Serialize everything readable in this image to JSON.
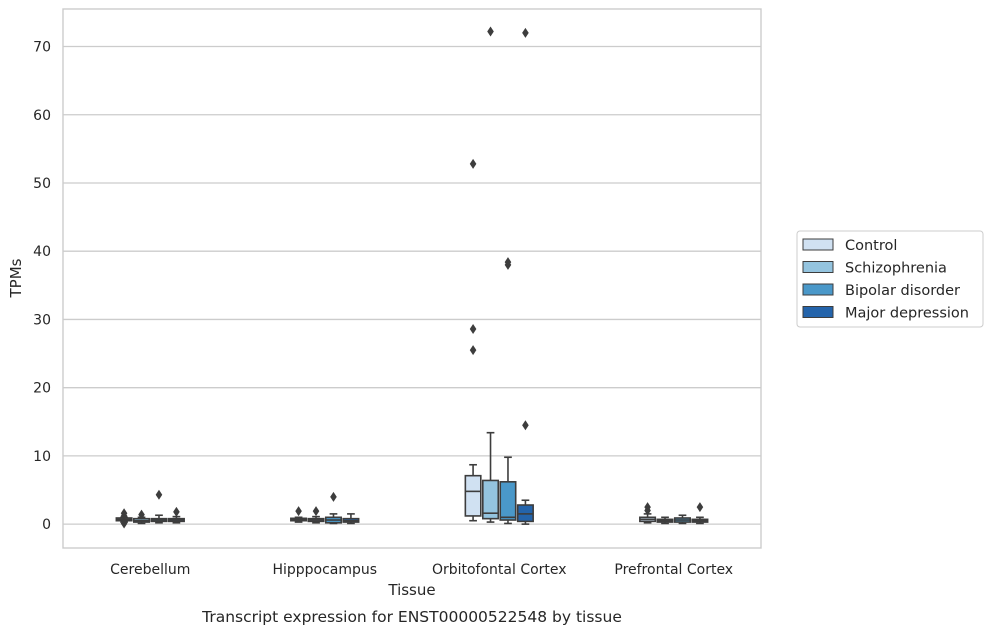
{
  "chart_data": {
    "type": "box",
    "title": "",
    "caption": "Transcript expression for ENST00000522548 by tissue",
    "xlabel": "Tissue",
    "ylabel": "TPMs",
    "ylim": [
      -3.5,
      75.5
    ],
    "yticks": [
      0,
      10,
      20,
      30,
      40,
      50,
      60,
      70
    ],
    "grid": "horizontal",
    "legend_position": "right",
    "categories": [
      "Cerebellum",
      "Hipppocampus",
      "Orbitofontal Cortex",
      "Prefrontal Cortex"
    ],
    "series": [
      {
        "name": "Control",
        "color": "#d0e1f2",
        "boxes": [
          {
            "whislo": 0.3,
            "q1": 0.5,
            "med": 0.7,
            "q3": 0.9,
            "whishi": 1.0,
            "fliers": [
              1.6,
              1.2,
              0.1
            ]
          },
          {
            "whislo": 0.3,
            "q1": 0.5,
            "med": 0.65,
            "q3": 0.85,
            "whishi": 1.0,
            "fliers": [
              1.9
            ]
          },
          {
            "whislo": 0.5,
            "q1": 1.2,
            "med": 4.8,
            "q3": 7.1,
            "whishi": 8.7,
            "fliers": [
              25.5,
              28.6,
              52.8
            ]
          },
          {
            "whislo": 0.2,
            "q1": 0.4,
            "med": 0.7,
            "q3": 1.0,
            "whishi": 1.5,
            "fliers": [
              2.5,
              2.0
            ]
          }
        ]
      },
      {
        "name": "Schizophrenia",
        "color": "#94c4df",
        "boxes": [
          {
            "whislo": 0.1,
            "q1": 0.3,
            "med": 0.5,
            "q3": 0.8,
            "whishi": 1.0,
            "fliers": [
              1.4
            ]
          },
          {
            "whislo": 0.2,
            "q1": 0.4,
            "med": 0.6,
            "q3": 0.8,
            "whishi": 1.1,
            "fliers": [
              1.9
            ]
          },
          {
            "whislo": 0.3,
            "q1": 0.8,
            "med": 1.6,
            "q3": 6.4,
            "whishi": 13.4,
            "fliers": [
              72.2
            ]
          },
          {
            "whislo": 0.1,
            "q1": 0.3,
            "med": 0.5,
            "q3": 0.7,
            "whishi": 1.0,
            "fliers": []
          }
        ]
      },
      {
        "name": "Bipolar disorder",
        "color": "#4a98c9",
        "boxes": [
          {
            "whislo": 0.2,
            "q1": 0.4,
            "med": 0.6,
            "q3": 0.8,
            "whishi": 1.3,
            "fliers": [
              4.3
            ]
          },
          {
            "whislo": 0.1,
            "q1": 0.2,
            "med": 0.6,
            "q3": 1.0,
            "whishi": 1.5,
            "fliers": [
              4.0
            ]
          },
          {
            "whislo": 0.1,
            "q1": 0.6,
            "med": 1.0,
            "q3": 6.2,
            "whishi": 9.8,
            "fliers": [
              38.0,
              38.4
            ]
          },
          {
            "whislo": 0.1,
            "q1": 0.3,
            "med": 0.6,
            "q3": 0.9,
            "whishi": 1.3,
            "fliers": []
          }
        ]
      },
      {
        "name": "Major depression",
        "color": "#2464ab",
        "boxes": [
          {
            "whislo": 0.2,
            "q1": 0.4,
            "med": 0.6,
            "q3": 0.8,
            "whishi": 1.1,
            "fliers": [
              1.8
            ]
          },
          {
            "whislo": 0.1,
            "q1": 0.3,
            "med": 0.5,
            "q3": 0.8,
            "whishi": 1.5,
            "fliers": []
          },
          {
            "whislo": 0.0,
            "q1": 0.4,
            "med": 1.5,
            "q3": 2.8,
            "whishi": 3.5,
            "fliers": [
              14.5,
              72.0
            ]
          },
          {
            "whislo": 0.1,
            "q1": 0.3,
            "med": 0.5,
            "q3": 0.7,
            "whishi": 1.0,
            "fliers": [
              2.5
            ]
          }
        ]
      }
    ]
  }
}
